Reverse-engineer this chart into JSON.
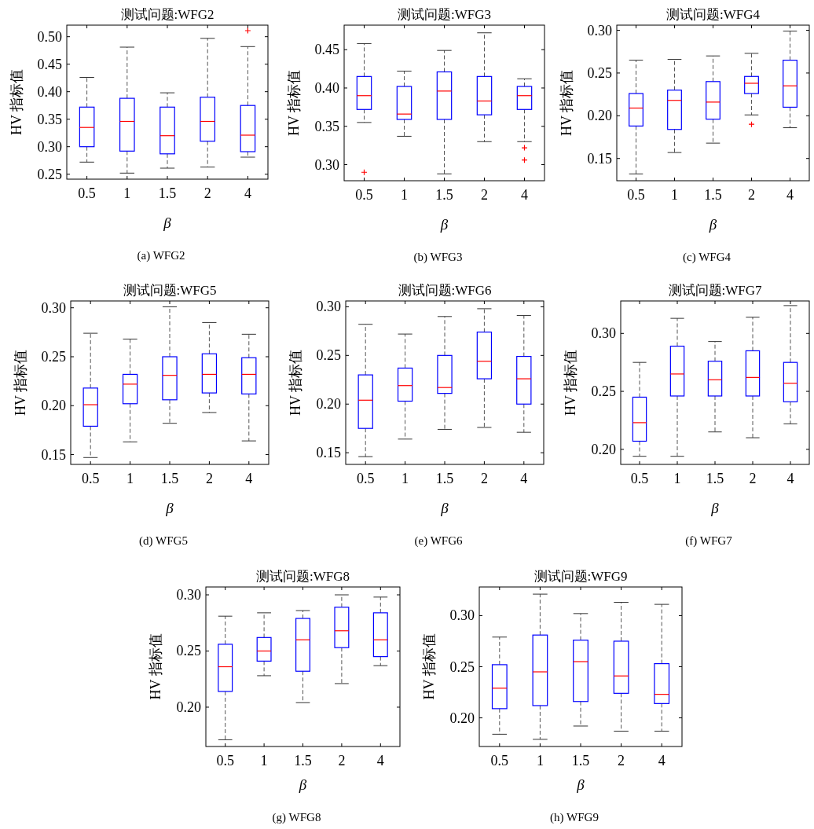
{
  "chart_data": [
    {
      "type": "box",
      "title": "测试问题:WFG2",
      "xlabel": "β",
      "ylabel": "HV 指标值",
      "categories": [
        "0.5",
        "1",
        "1.5",
        "2",
        "4"
      ],
      "color": "#0000ff",
      "ylim": [
        0.241,
        0.521
      ],
      "yticks": [
        {
          "value": 0.25,
          "label": "0.25"
        },
        {
          "value": 0.3,
          "label": "0.30"
        },
        {
          "value": 0.35,
          "label": "0.35"
        },
        {
          "value": 0.4,
          "label": "0.40"
        },
        {
          "value": 0.45,
          "label": "0.45"
        },
        {
          "value": 0.5,
          "label": "0.50"
        }
      ],
      "annotations": [
        "(a) WFG2"
      ],
      "boxes": [
        {
          "low": 0.272,
          "q1": 0.3,
          "median": 0.335,
          "q3": 0.372,
          "high": 0.426
        },
        {
          "low": 0.252,
          "q1": 0.292,
          "median": 0.346,
          "q3": 0.388,
          "high": 0.481
        },
        {
          "low": 0.261,
          "q1": 0.287,
          "median": 0.32,
          "q3": 0.372,
          "high": 0.398
        },
        {
          "low": 0.263,
          "q1": 0.31,
          "median": 0.346,
          "q3": 0.39,
          "high": 0.497
        },
        {
          "low": 0.281,
          "q1": 0.291,
          "median": 0.321,
          "q3": 0.375,
          "high": 0.482,
          "outliers": [
            0.511
          ]
        }
      ]
    },
    {
      "type": "box",
      "title": "测试问题:WFG3",
      "xlabel": "β",
      "ylabel": "HV 指标值",
      "categories": [
        "0.5",
        "1",
        "1.5",
        "2",
        "4"
      ],
      "color": "#0000ff",
      "ylim": [
        0.279,
        0.482
      ],
      "yticks": [
        {
          "value": 0.3,
          "label": "0.30"
        },
        {
          "value": 0.35,
          "label": "0.35"
        },
        {
          "value": 0.4,
          "label": "0.40"
        },
        {
          "value": 0.45,
          "label": "0.45"
        }
      ],
      "annotations": [
        "(b) WFG3"
      ],
      "boxes": [
        {
          "low": 0.355,
          "q1": 0.372,
          "median": 0.39,
          "q3": 0.415,
          "high": 0.458,
          "outliers": [
            0.29
          ]
        },
        {
          "low": 0.337,
          "q1": 0.359,
          "median": 0.366,
          "q3": 0.402,
          "high": 0.422
        },
        {
          "low": 0.288,
          "q1": 0.359,
          "median": 0.396,
          "q3": 0.421,
          "high": 0.449
        },
        {
          "low": 0.33,
          "q1": 0.365,
          "median": 0.383,
          "q3": 0.415,
          "high": 0.472
        },
        {
          "low": 0.33,
          "q1": 0.372,
          "median": 0.39,
          "q3": 0.402,
          "high": 0.412,
          "outliers": [
            0.322,
            0.306
          ]
        }
      ]
    },
    {
      "type": "box",
      "title": "测试问题:WFG4",
      "xlabel": "β",
      "ylabel": "HV 指标值",
      "categories": [
        "0.5",
        "1",
        "1.5",
        "2",
        "4"
      ],
      "color": "#0000ff",
      "ylim": [
        0.124,
        0.306
      ],
      "yticks": [
        {
          "value": 0.15,
          "label": "0.15"
        },
        {
          "value": 0.2,
          "label": "0.20"
        },
        {
          "value": 0.25,
          "label": "0.25"
        },
        {
          "value": 0.3,
          "label": "0.30"
        }
      ],
      "annotations": [
        "(c) WFG4"
      ],
      "boxes": [
        {
          "low": 0.132,
          "q1": 0.188,
          "median": 0.209,
          "q3": 0.226,
          "high": 0.265
        },
        {
          "low": 0.157,
          "q1": 0.184,
          "median": 0.218,
          "q3": 0.23,
          "high": 0.266
        },
        {
          "low": 0.168,
          "q1": 0.196,
          "median": 0.216,
          "q3": 0.24,
          "high": 0.27
        },
        {
          "low": 0.201,
          "q1": 0.226,
          "median": 0.238,
          "q3": 0.246,
          "high": 0.273,
          "outliers": [
            0.19
          ]
        },
        {
          "low": 0.186,
          "q1": 0.21,
          "median": 0.235,
          "q3": 0.265,
          "high": 0.299
        }
      ]
    },
    {
      "type": "box",
      "title": "测试问题:WFG5",
      "xlabel": "β",
      "ylabel": "HV 指标值",
      "categories": [
        "0.5",
        "1",
        "1.5",
        "2",
        "4"
      ],
      "color": "#0000ff",
      "ylim": [
        0.14,
        0.307
      ],
      "yticks": [
        {
          "value": 0.15,
          "label": "0.15"
        },
        {
          "value": 0.2,
          "label": "0.20"
        },
        {
          "value": 0.25,
          "label": "0.25"
        },
        {
          "value": 0.3,
          "label": "0.30"
        }
      ],
      "annotations": [
        "(d) WFG5"
      ],
      "boxes": [
        {
          "low": 0.147,
          "q1": 0.179,
          "median": 0.201,
          "q3": 0.218,
          "high": 0.274
        },
        {
          "low": 0.163,
          "q1": 0.202,
          "median": 0.222,
          "q3": 0.232,
          "high": 0.268
        },
        {
          "low": 0.182,
          "q1": 0.206,
          "median": 0.231,
          "q3": 0.25,
          "high": 0.301
        },
        {
          "low": 0.193,
          "q1": 0.213,
          "median": 0.232,
          "q3": 0.253,
          "high": 0.285
        },
        {
          "low": 0.164,
          "q1": 0.212,
          "median": 0.232,
          "q3": 0.249,
          "high": 0.273
        }
      ]
    },
    {
      "type": "box",
      "title": "测试问题:WFG6",
      "xlabel": "β",
      "ylabel": "HV 指标值",
      "categories": [
        "0.5",
        "1",
        "1.5",
        "2",
        "4"
      ],
      "color": "#0000ff",
      "ylim": [
        0.138,
        0.306
      ],
      "yticks": [
        {
          "value": 0.15,
          "label": "0.15"
        },
        {
          "value": 0.2,
          "label": "0.20"
        },
        {
          "value": 0.25,
          "label": "0.25"
        },
        {
          "value": 0.3,
          "label": "0.30"
        }
      ],
      "annotations": [
        "(e) WFG6"
      ],
      "boxes": [
        {
          "low": 0.146,
          "q1": 0.175,
          "median": 0.204,
          "q3": 0.23,
          "high": 0.282
        },
        {
          "low": 0.164,
          "q1": 0.203,
          "median": 0.219,
          "q3": 0.237,
          "high": 0.272
        },
        {
          "low": 0.174,
          "q1": 0.211,
          "median": 0.217,
          "q3": 0.25,
          "high": 0.29
        },
        {
          "low": 0.176,
          "q1": 0.226,
          "median": 0.244,
          "q3": 0.274,
          "high": 0.298
        },
        {
          "low": 0.171,
          "q1": 0.2,
          "median": 0.226,
          "q3": 0.249,
          "high": 0.291
        }
      ]
    },
    {
      "type": "box",
      "title": "测试问题:WFG7",
      "xlabel": "β",
      "ylabel": "HV 指标值",
      "categories": [
        "0.5",
        "1",
        "1.5",
        "2",
        "4"
      ],
      "color": "#0000ff",
      "ylim": [
        0.187,
        0.328
      ],
      "yticks": [
        {
          "value": 0.2,
          "label": "0.20"
        },
        {
          "value": 0.25,
          "label": "0.25"
        },
        {
          "value": 0.3,
          "label": "0.30"
        }
      ],
      "annotations": [
        "(f) WFG7"
      ],
      "boxes": [
        {
          "low": 0.194,
          "q1": 0.207,
          "median": 0.223,
          "q3": 0.245,
          "high": 0.275
        },
        {
          "low": 0.194,
          "q1": 0.246,
          "median": 0.265,
          "q3": 0.289,
          "high": 0.313
        },
        {
          "low": 0.215,
          "q1": 0.246,
          "median": 0.26,
          "q3": 0.276,
          "high": 0.293
        },
        {
          "low": 0.21,
          "q1": 0.246,
          "median": 0.262,
          "q3": 0.285,
          "high": 0.314
        },
        {
          "low": 0.222,
          "q1": 0.241,
          "median": 0.257,
          "q3": 0.275,
          "high": 0.324
        }
      ]
    },
    {
      "type": "box",
      "title": "测试问题:WFG8",
      "xlabel": "β",
      "ylabel": "HV 指标值",
      "categories": [
        "0.5",
        "1",
        "1.5",
        "2",
        "4"
      ],
      "color": "#0000ff",
      "ylim": [
        0.165,
        0.307
      ],
      "yticks": [
        {
          "value": 0.2,
          "label": "0.20"
        },
        {
          "value": 0.25,
          "label": "0.25"
        },
        {
          "value": 0.3,
          "label": "0.30"
        }
      ],
      "annotations": [
        "(g) WFG8"
      ],
      "boxes": [
        {
          "low": 0.171,
          "q1": 0.214,
          "median": 0.236,
          "q3": 0.256,
          "high": 0.281
        },
        {
          "low": 0.228,
          "q1": 0.241,
          "median": 0.25,
          "q3": 0.262,
          "high": 0.284
        },
        {
          "low": 0.204,
          "q1": 0.232,
          "median": 0.26,
          "q3": 0.279,
          "high": 0.286
        },
        {
          "low": 0.221,
          "q1": 0.253,
          "median": 0.268,
          "q3": 0.289,
          "high": 0.3
        },
        {
          "low": 0.237,
          "q1": 0.245,
          "median": 0.26,
          "q3": 0.284,
          "high": 0.298
        }
      ]
    },
    {
      "type": "box",
      "title": "测试问题:WFG9",
      "xlabel": "β",
      "ylabel": "HV 指标值",
      "categories": [
        "0.5",
        "1",
        "1.5",
        "2",
        "4"
      ],
      "color": "#0000ff",
      "ylim": [
        0.172,
        0.328
      ],
      "yticks": [
        {
          "value": 0.2,
          "label": "0.20"
        },
        {
          "value": 0.25,
          "label": "0.25"
        },
        {
          "value": 0.3,
          "label": "0.30"
        }
      ],
      "annotations": [
        "(h) WFG9"
      ],
      "boxes": [
        {
          "low": 0.184,
          "q1": 0.209,
          "median": 0.229,
          "q3": 0.252,
          "high": 0.279
        },
        {
          "low": 0.179,
          "q1": 0.212,
          "median": 0.245,
          "q3": 0.281,
          "high": 0.321
        },
        {
          "low": 0.192,
          "q1": 0.216,
          "median": 0.255,
          "q3": 0.276,
          "high": 0.302
        },
        {
          "low": 0.187,
          "q1": 0.224,
          "median": 0.241,
          "q3": 0.275,
          "high": 0.313
        },
        {
          "low": 0.187,
          "q1": 0.214,
          "median": 0.223,
          "q3": 0.253,
          "high": 0.311
        }
      ]
    }
  ]
}
